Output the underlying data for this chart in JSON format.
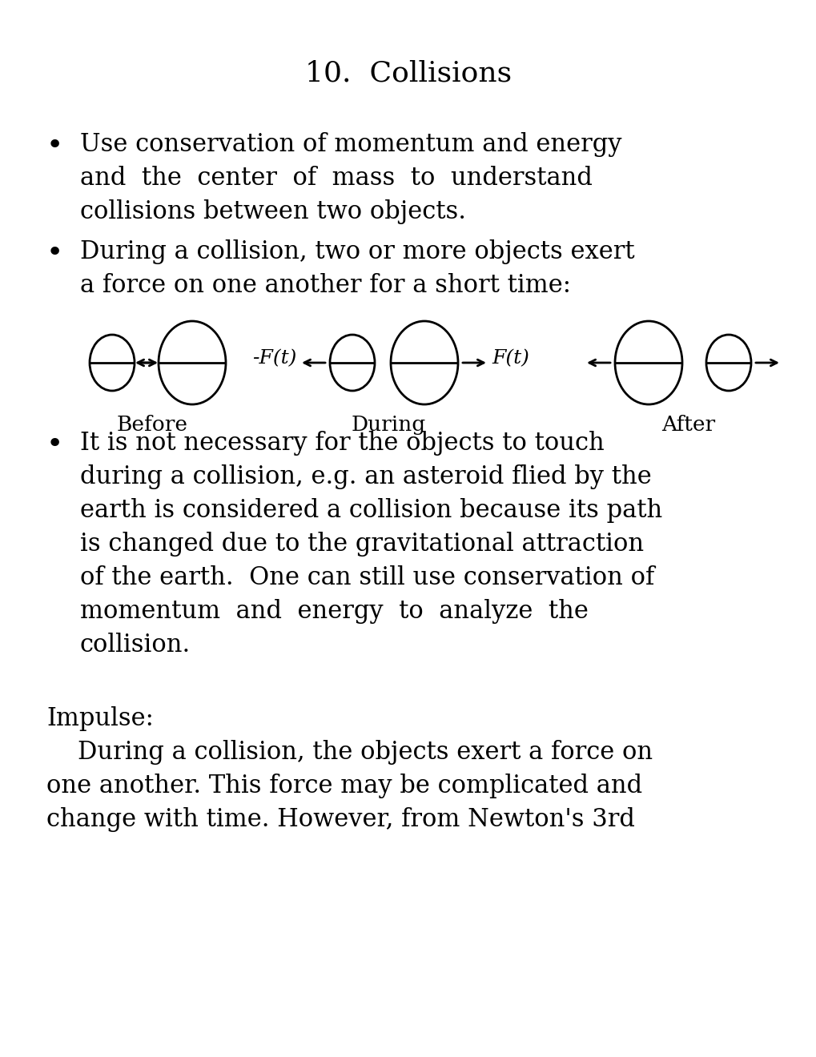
{
  "title": "10.  Collisions",
  "title_fontsize": 26,
  "background_color": "#ffffff",
  "text_color": "#000000",
  "font_family": "DejaVu Serif",
  "bullet1_lines": [
    "Use conservation of momentum and energy",
    "and  the  center  of  mass  to  understand",
    "collisions between two objects."
  ],
  "bullet2_lines": [
    "During a collision, two or more objects exert",
    "a force on one another for a short time:"
  ],
  "before_label": "Before",
  "during_label": "During",
  "after_label": "After",
  "ft_label": "F(t)",
  "neg_ft_label": "-F(t)",
  "bullet3_lines": [
    "It is not necessary for the objects to touch",
    "during a collision, e.g. an asteroid flied by the",
    "earth is considered a collision because its path",
    "is changed due to the gravitational attraction",
    "of the earth.  One can still use conservation of",
    "momentum  and  energy  to  analyze  the",
    "collision."
  ],
  "impulse_header": "Impulse:",
  "impulse_lines": [
    "    During a collision, the objects exert a force on",
    "one another. This force may be complicated and",
    "change with time. However, from Newton's 3rd"
  ],
  "body_fontsize": 22,
  "label_fontsize": 19,
  "diagram_fontsize": 18
}
